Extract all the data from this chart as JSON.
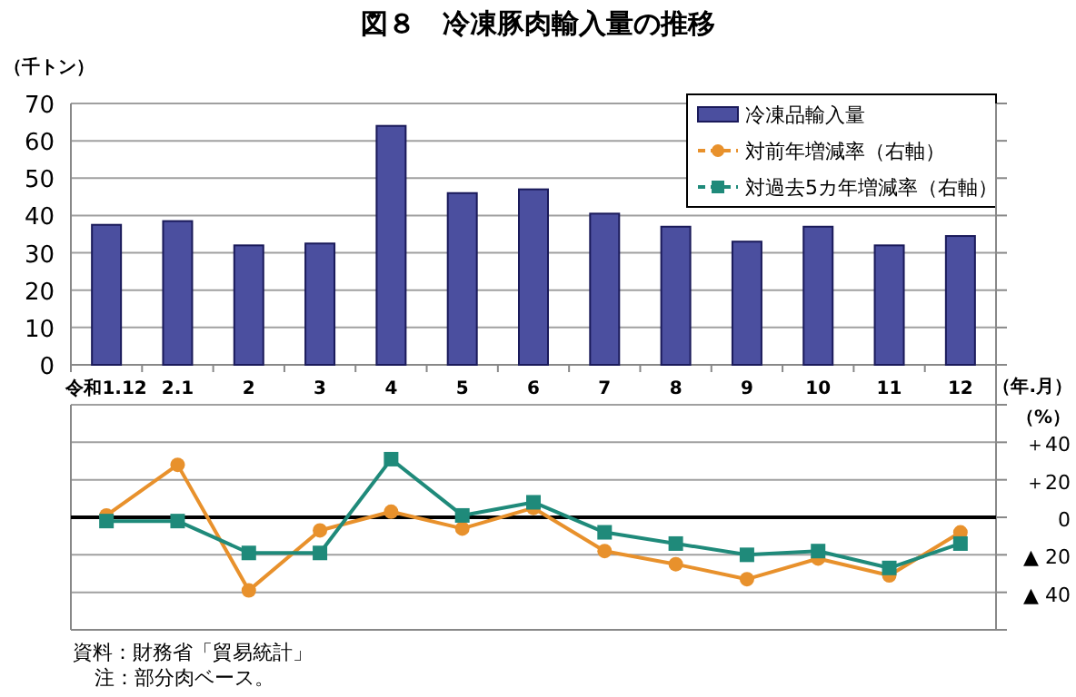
{
  "chart_data": [
    {
      "type": "bar",
      "title": "図８　冷凍豚肉輸入量の推移",
      "ylabel": "（千トン）",
      "xlabel": "（年.月）",
      "categories": [
        "令和1.12",
        "2.1",
        "2",
        "3",
        "4",
        "5",
        "6",
        "7",
        "8",
        "9",
        "10",
        "11",
        "12"
      ],
      "series": [
        {
          "name": "冷凍品輸入量",
          "color": "#4b4f9f",
          "values": [
            37.5,
            38.5,
            32,
            32.5,
            64,
            46,
            47,
            40.5,
            37,
            33,
            37,
            32,
            34.5
          ]
        }
      ],
      "ylim": [
        0,
        70
      ],
      "yticks": [
        0,
        10,
        20,
        30,
        40,
        50,
        60,
        70
      ],
      "grid": "y",
      "legend": "top right"
    },
    {
      "type": "line",
      "ylabel": "（%）",
      "legend": "top right",
      "categories": [
        null,
        null,
        null,
        null,
        null,
        null,
        null,
        null,
        null,
        null,
        null,
        null,
        null
      ],
      "series": [
        {
          "name": "対前年増減率（右軸）",
          "color": "#e8912c",
          "marker": "circle",
          "values": [
            1,
            28,
            -39,
            -7,
            3,
            -6,
            5,
            -18,
            -25,
            -33,
            -22,
            -31,
            -8
          ]
        },
        {
          "name": "対過去5カ年増減率（右軸）",
          "color": "#1f8a7a",
          "marker": "square",
          "values": [
            -2,
            -2,
            -19,
            -19,
            31,
            1,
            8,
            -8,
            -14,
            -20,
            -18,
            -27,
            -14
          ]
        }
      ],
      "ylim": [
        -60,
        60
      ],
      "yticks": [
        {
          "value": -60,
          "label": null
        },
        {
          "value": -40,
          "label": "▲ 40"
        },
        {
          "value": -20,
          "label": "▲ 20"
        },
        0,
        {
          "value": 20,
          "label": "＋20"
        },
        {
          "value": 40,
          "label": "＋40"
        },
        {
          "value": 60,
          "label": null
        }
      ],
      "grid": "y",
      "tick_labels": "y",
      "line_style": "solid",
      "ref_lines": [
        {
          "axis": "y",
          "value": 0,
          "color": "#000000"
        }
      ],
      "annotations": [
        "資料：財務省「貿易統計」",
        "注：部分肉ベース。"
      ]
    }
  ]
}
